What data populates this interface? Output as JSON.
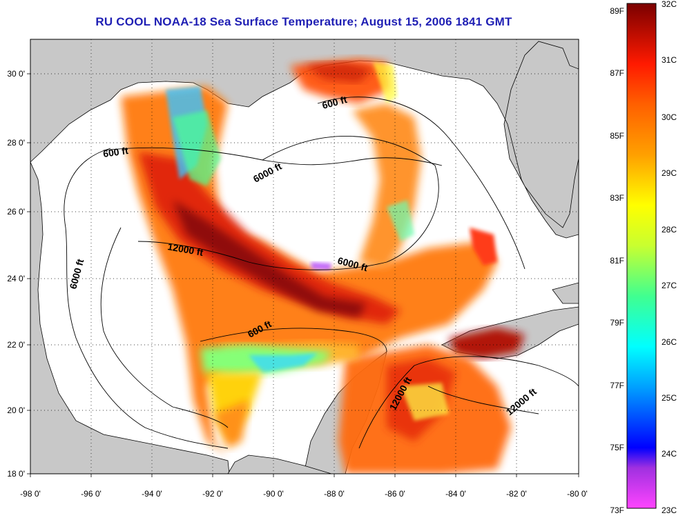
{
  "title": "RU COOL  NOAA-18  Sea Surface Temperature;  August 15, 2006 1841 GMT",
  "axes": {
    "lon_ticks": [
      "-98 0'",
      "-96 0'",
      "-94 0'",
      "-92 0'",
      "-90 0'",
      "-88 0'",
      "-86 0'",
      "-84 0'",
      "-82 0'",
      "-80 0'"
    ],
    "lat_ticks": [
      "30 0'",
      "28 0'",
      "26 0'",
      "24 0'",
      "22 0'",
      "20 0'",
      "18 0'"
    ],
    "lon_range": [
      -98,
      -80
    ],
    "lat_range": [
      18,
      31
    ],
    "grid": true
  },
  "contours": [
    {
      "label": "600 ft"
    },
    {
      "label": "6000 ft"
    },
    {
      "label": "12000 ft"
    },
    {
      "label": "6000 ft"
    },
    {
      "label": "600 ft"
    },
    {
      "label": "6000 ft"
    },
    {
      "label": "600 ft"
    },
    {
      "label": "12000 ft"
    },
    {
      "label": "12000 ft"
    }
  ],
  "colorbar": {
    "fahrenheit": [
      "89F",
      "87F",
      "85F",
      "83F",
      "81F",
      "79F",
      "77F",
      "75F",
      "73F"
    ],
    "celsius": [
      "32C",
      "31C",
      "30C",
      "29C",
      "28C",
      "27C",
      "26C",
      "25C",
      "24C",
      "23C"
    ],
    "colors": {
      "hot": "#7a0000",
      "red": "#ff1a00",
      "orange": "#ff8c00",
      "yellow": "#f0f000",
      "green": "#60ff80",
      "cyan": "#00ffff",
      "blue": "#0000ff",
      "violet": "#8a2be2",
      "magenta": "#ff33ff"
    }
  },
  "colors": {
    "land": "#c8c8c8",
    "water": "#ffffff",
    "title": "#1f1fb4"
  }
}
